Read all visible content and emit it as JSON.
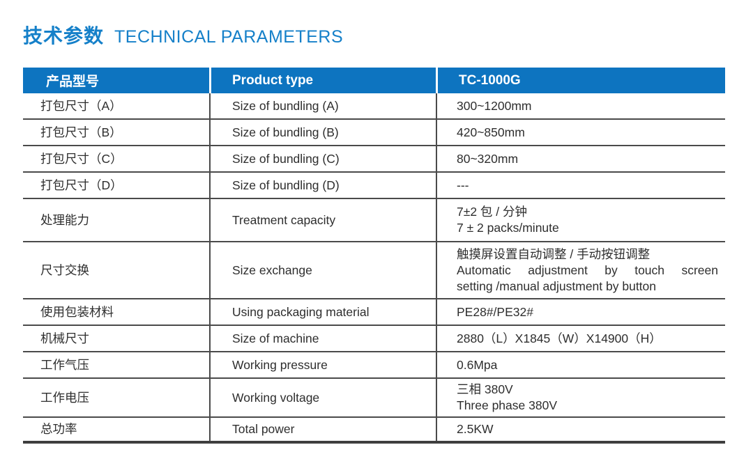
{
  "title": {
    "zh": "技术参数",
    "en": "TECHNICAL PARAMETERS"
  },
  "colors": {
    "title_blue": "#1580c9",
    "header_bg": "#0d74c0",
    "header_text": "#ffffff",
    "grid_line": "#4a4a4a",
    "body_text": "#2e2e2e"
  },
  "table": {
    "header": {
      "col_zh": "产品型号",
      "col_en": "Product type",
      "col_value": "TC-1000G"
    },
    "rows": [
      {
        "zh": "打包尺寸（A）",
        "en": "Size of bundling (A)",
        "values": [
          "300~1200mm"
        ]
      },
      {
        "zh": "打包尺寸（B）",
        "en": "Size of bundling (B)",
        "values": [
          "420~850mm"
        ]
      },
      {
        "zh": "打包尺寸（C）",
        "en": "Size of bundling (C)",
        "values": [
          "80~320mm"
        ]
      },
      {
        "zh": "打包尺寸（D）",
        "en": "Size of bundling (D)",
        "values": [
          "---"
        ]
      },
      {
        "zh": "处理能力",
        "en": "Treatment capacity",
        "values": [
          "7±2 包 / 分钟",
          "7 ± 2 packs/minute"
        ]
      },
      {
        "zh": "尺寸交换",
        "en": "Size exchange",
        "values": [
          "触摸屏设置自动调整 / 手动按钮调整",
          "Automatic adjustment by touch screen",
          "setting /manual adjustment by button"
        ]
      },
      {
        "zh": "使用包装材料",
        "en": "Using packaging material",
        "values": [
          "PE28#/PE32#"
        ]
      },
      {
        "zh": "机械尺寸",
        "en": "Size of machine",
        "values": [
          "2880（L）X1845（W）X14900（H）"
        ]
      },
      {
        "zh": "工作气压",
        "en": "Working pressure",
        "values": [
          "0.6Mpa"
        ]
      },
      {
        "zh": "工作电压",
        "en": "Working voltage",
        "values": [
          "三相 380V",
          "Three phase 380V"
        ]
      },
      {
        "zh": "总功率",
        "en": "Total power",
        "values": [
          "2.5KW"
        ]
      }
    ]
  }
}
